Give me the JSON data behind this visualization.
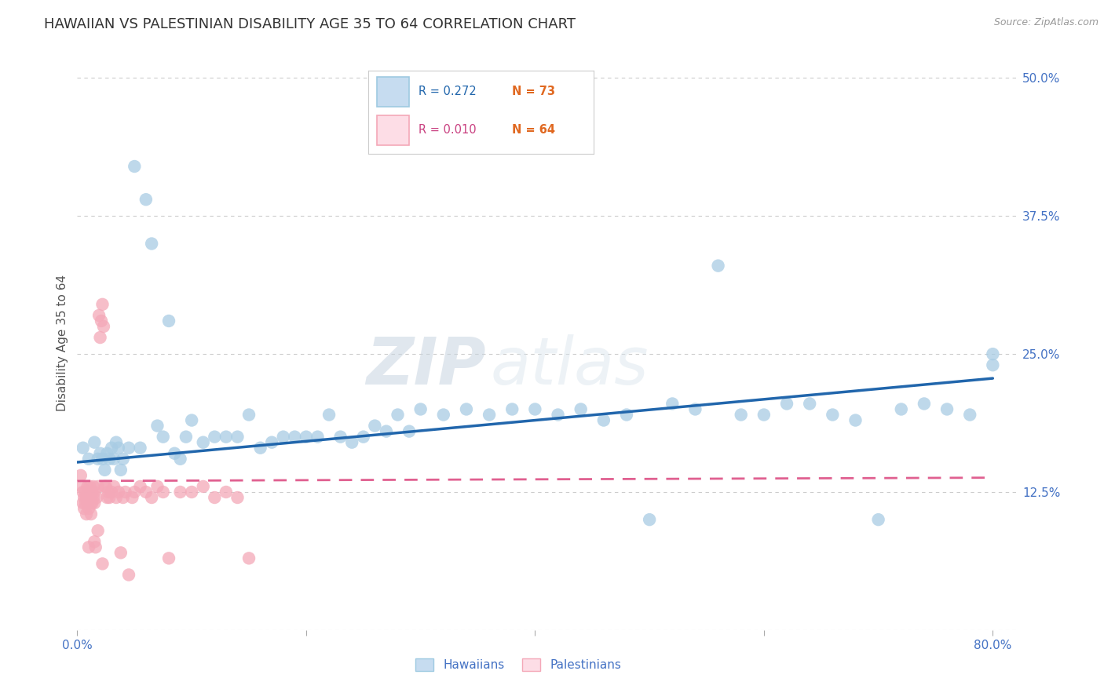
{
  "title": "HAWAIIAN VS PALESTINIAN DISABILITY AGE 35 TO 64 CORRELATION CHART",
  "source": "Source: ZipAtlas.com",
  "ylabel": "Disability Age 35 to 64",
  "xlim": [
    0.0,
    0.82
  ],
  "ylim": [
    0.0,
    0.52
  ],
  "yticks": [
    0.0,
    0.125,
    0.25,
    0.375,
    0.5
  ],
  "ytick_labels": [
    "",
    "12.5%",
    "25.0%",
    "37.5%",
    "50.0%"
  ],
  "xticks": [
    0.0,
    0.2,
    0.4,
    0.6,
    0.8
  ],
  "xtick_labels": [
    "0.0%",
    "",
    "",
    "",
    "80.0%"
  ],
  "hawaiian_R": 0.272,
  "hawaiian_N": 73,
  "palestinian_R": 0.01,
  "palestinian_N": 64,
  "hawaiian_color": "#a8cce4",
  "palestinian_color": "#f4a8b8",
  "hawaiian_line_color": "#2166ac",
  "palestinian_line_color": "#e06090",
  "background_color": "#ffffff",
  "grid_color": "#cccccc",
  "watermark_zip": "ZIP",
  "watermark_atlas": "atlas",
  "title_fontsize": 13,
  "label_fontsize": 11,
  "tick_fontsize": 11,
  "hawaiian_x": [
    0.005,
    0.01,
    0.015,
    0.018,
    0.02,
    0.022,
    0.024,
    0.026,
    0.028,
    0.03,
    0.032,
    0.034,
    0.036,
    0.038,
    0.04,
    0.045,
    0.05,
    0.055,
    0.06,
    0.065,
    0.07,
    0.075,
    0.08,
    0.085,
    0.09,
    0.095,
    0.1,
    0.11,
    0.12,
    0.13,
    0.14,
    0.15,
    0.16,
    0.17,
    0.18,
    0.19,
    0.2,
    0.21,
    0.22,
    0.23,
    0.24,
    0.25,
    0.26,
    0.27,
    0.28,
    0.29,
    0.3,
    0.32,
    0.34,
    0.36,
    0.38,
    0.4,
    0.42,
    0.44,
    0.46,
    0.48,
    0.5,
    0.52,
    0.54,
    0.56,
    0.58,
    0.6,
    0.62,
    0.64,
    0.66,
    0.68,
    0.7,
    0.72,
    0.74,
    0.76,
    0.78,
    0.8,
    0.8
  ],
  "hawaiian_y": [
    0.165,
    0.155,
    0.17,
    0.155,
    0.16,
    0.155,
    0.145,
    0.16,
    0.155,
    0.165,
    0.155,
    0.17,
    0.165,
    0.145,
    0.155,
    0.165,
    0.42,
    0.165,
    0.39,
    0.35,
    0.185,
    0.175,
    0.28,
    0.16,
    0.155,
    0.175,
    0.19,
    0.17,
    0.175,
    0.175,
    0.175,
    0.195,
    0.165,
    0.17,
    0.175,
    0.175,
    0.175,
    0.175,
    0.195,
    0.175,
    0.17,
    0.175,
    0.185,
    0.18,
    0.195,
    0.18,
    0.2,
    0.195,
    0.2,
    0.195,
    0.2,
    0.2,
    0.195,
    0.2,
    0.19,
    0.195,
    0.1,
    0.205,
    0.2,
    0.33,
    0.195,
    0.195,
    0.205,
    0.205,
    0.195,
    0.19,
    0.1,
    0.2,
    0.205,
    0.2,
    0.195,
    0.25,
    0.24
  ],
  "palestinian_x": [
    0.003,
    0.004,
    0.005,
    0.005,
    0.006,
    0.006,
    0.007,
    0.007,
    0.008,
    0.008,
    0.009,
    0.009,
    0.01,
    0.01,
    0.011,
    0.011,
    0.012,
    0.012,
    0.013,
    0.013,
    0.014,
    0.014,
    0.015,
    0.015,
    0.016,
    0.017,
    0.018,
    0.019,
    0.02,
    0.021,
    0.022,
    0.023,
    0.024,
    0.025,
    0.026,
    0.027,
    0.028,
    0.03,
    0.032,
    0.034,
    0.036,
    0.038,
    0.04,
    0.042,
    0.045,
    0.048,
    0.05,
    0.055,
    0.06,
    0.065,
    0.07,
    0.075,
    0.08,
    0.09,
    0.1,
    0.11,
    0.12,
    0.13,
    0.14,
    0.15,
    0.022,
    0.018,
    0.015,
    0.01
  ],
  "palestinian_y": [
    0.14,
    0.13,
    0.125,
    0.115,
    0.12,
    0.11,
    0.125,
    0.115,
    0.12,
    0.105,
    0.13,
    0.115,
    0.125,
    0.11,
    0.13,
    0.12,
    0.115,
    0.105,
    0.125,
    0.115,
    0.13,
    0.12,
    0.115,
    0.125,
    0.075,
    0.12,
    0.13,
    0.285,
    0.265,
    0.28,
    0.295,
    0.275,
    0.13,
    0.13,
    0.12,
    0.125,
    0.12,
    0.125,
    0.13,
    0.12,
    0.125,
    0.07,
    0.12,
    0.125,
    0.05,
    0.12,
    0.125,
    0.13,
    0.125,
    0.12,
    0.13,
    0.125,
    0.065,
    0.125,
    0.125,
    0.13,
    0.12,
    0.125,
    0.12,
    0.065,
    0.06,
    0.09,
    0.08,
    0.075
  ],
  "haw_line_x": [
    0.0,
    0.8
  ],
  "haw_line_y": [
    0.152,
    0.228
  ],
  "pal_line_x": [
    0.0,
    0.8
  ],
  "pal_line_y": [
    0.135,
    0.138
  ]
}
